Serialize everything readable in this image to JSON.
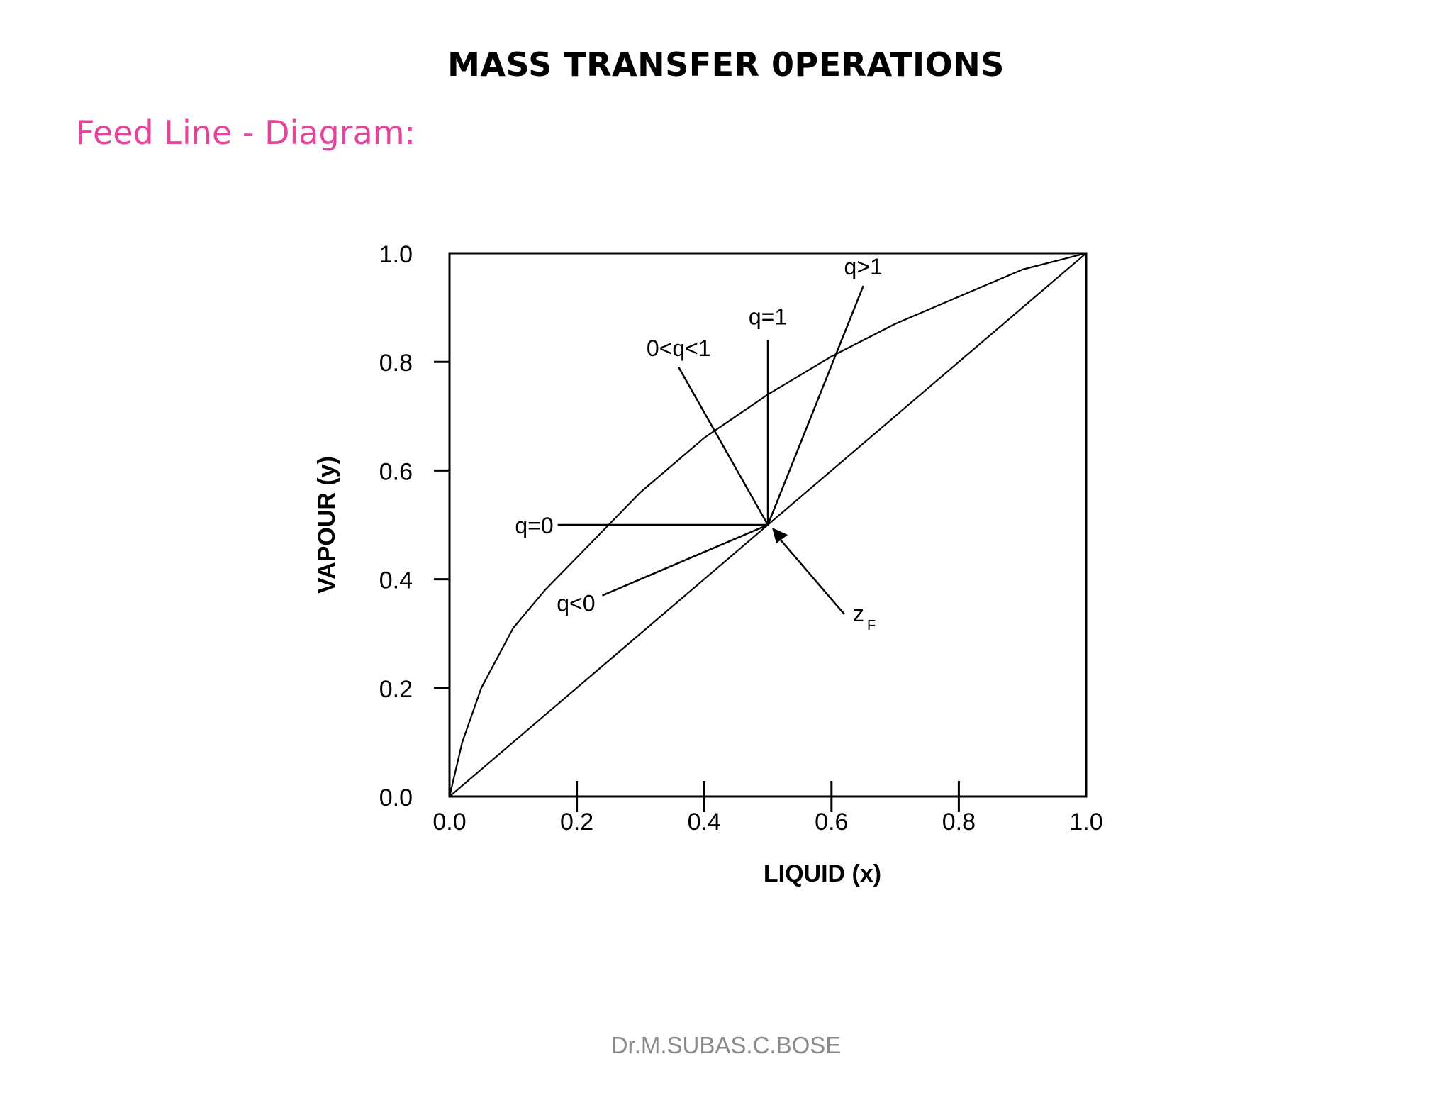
{
  "slide": {
    "title": "MASS TRANSFER 0PERATIONS",
    "subtitle": "Feed Line - Diagram:",
    "footer": "Dr.M.SUBAS.C.BOSE"
  },
  "colors": {
    "subtitle": "#e4449a",
    "footer": "#8a8a8a",
    "ink": "#000000"
  },
  "chart_data": {
    "type": "line",
    "xlabel": "LIQUID (x)",
    "ylabel": "VAPOUR (y)",
    "xlim": [
      0,
      1
    ],
    "ylim": [
      0,
      1
    ],
    "xticks": [
      "0.0",
      "0.2",
      "0.4",
      "0.6",
      "0.8",
      "1.0"
    ],
    "yticks": [
      "0.0",
      "0.2",
      "0.4",
      "0.6",
      "0.8",
      "1.0"
    ],
    "grid": false,
    "feed_point": {
      "x": 0.5,
      "y": 0.5,
      "label": "z",
      "label_sub": "F"
    },
    "series": [
      {
        "key": "equilibrium",
        "x": [
          0,
          0.02,
          0.05,
          0.1,
          0.15,
          0.2,
          0.25,
          0.3,
          0.4,
          0.5,
          0.6,
          0.7,
          0.8,
          0.9,
          1.0
        ],
        "y": [
          0,
          0.1,
          0.2,
          0.31,
          0.38,
          0.44,
          0.5,
          0.56,
          0.66,
          0.74,
          0.81,
          0.87,
          0.92,
          0.97,
          1.0
        ]
      },
      {
        "key": "diagonal",
        "x": [
          0,
          1
        ],
        "y": [
          0,
          1
        ]
      }
    ],
    "feed_lines": [
      {
        "label": "q=0",
        "x": [
          0.5,
          0.17
        ],
        "y": [
          0.5,
          0.5
        ]
      },
      {
        "label": "q=1",
        "x": [
          0.5,
          0.5
        ],
        "y": [
          0.5,
          0.84
        ]
      },
      {
        "label": "0<q<1",
        "x": [
          0.5,
          0.36
        ],
        "y": [
          0.5,
          0.79
        ]
      },
      {
        "label": "q>1",
        "x": [
          0.5,
          0.65
        ],
        "y": [
          0.5,
          0.94
        ]
      },
      {
        "label": "q<0",
        "x": [
          0.5,
          0.24
        ],
        "y": [
          0.5,
          0.37
        ]
      }
    ]
  }
}
